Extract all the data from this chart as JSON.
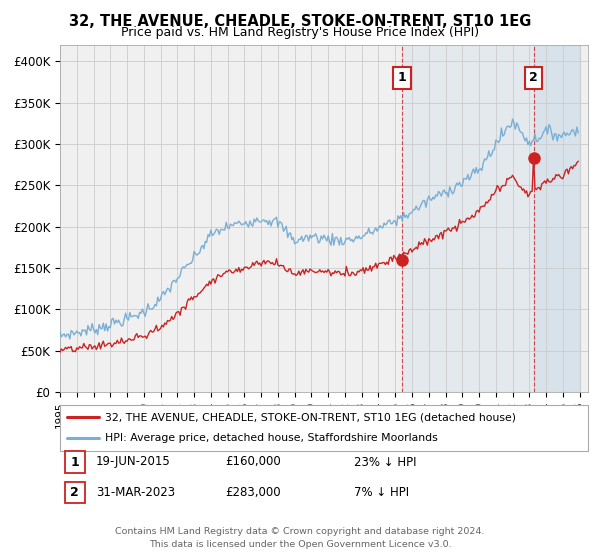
{
  "title": "32, THE AVENUE, CHEADLE, STOKE-ON-TRENT, ST10 1EG",
  "subtitle": "Price paid vs. HM Land Registry's House Price Index (HPI)",
  "ylim": [
    0,
    420000
  ],
  "yticks": [
    0,
    50000,
    100000,
    150000,
    200000,
    250000,
    300000,
    350000,
    400000
  ],
  "ytick_labels": [
    "£0",
    "£50K",
    "£100K",
    "£150K",
    "£200K",
    "£250K",
    "£300K",
    "£350K",
    "£400K"
  ],
  "hpi_color": "#7aaed4",
  "price_color": "#cc2222",
  "annotation1": {
    "label": "1",
    "date": "19-JUN-2015",
    "price": "£160,000",
    "pct": "23% ↓ HPI"
  },
  "annotation2": {
    "label": "2",
    "date": "31-MAR-2023",
    "price": "£283,000",
    "pct": "7% ↓ HPI"
  },
  "legend_line1": "32, THE AVENUE, CHEADLE, STOKE-ON-TRENT, ST10 1EG (detached house)",
  "legend_line2": "HPI: Average price, detached house, Staffordshire Moorlands",
  "footer1": "Contains HM Land Registry data © Crown copyright and database right 2024.",
  "footer2": "This data is licensed under the Open Government Licence v3.0.",
  "bg_color": "#ffffff",
  "grid_color": "#cccccc",
  "plot_bg_color": "#f0f0f0",
  "m1_year": 2015.46,
  "m2_year": 2023.25,
  "m1_price": 160000,
  "m2_price": 283000
}
